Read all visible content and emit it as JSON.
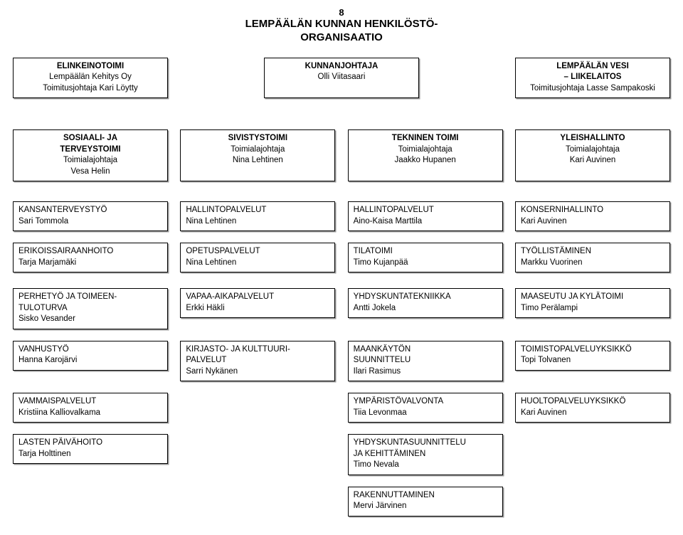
{
  "page_number": "8",
  "title_line1": "LEMPÄÄLÄN KUNNAN HENKILÖSTÖ-",
  "title_line2": "ORGANISAATIO",
  "top": {
    "left": {
      "b1": "ELINKEINOTOIMI",
      "n1": "Lempäälän Kehitys Oy",
      "n2": "Toimitusjohtaja Kari Löytty"
    },
    "center": {
      "b1": "KUNNANJOHTAJA",
      "n1": "Olli Viitasaari"
    },
    "right": {
      "b1": "LEMPÄÄLÄN VESI",
      "b2": "– LIIKELAITOS",
      "n1": "Toimitusjohtaja Lasse Sampakoski"
    }
  },
  "main": {
    "c1": {
      "b1": "SOSIAALI- JA",
      "b2": "TERVEYSTOIMI",
      "n1": "Toimialajohtaja",
      "n2": "Vesa Helin"
    },
    "c2": {
      "b1": "SIVISTYSTOIMI",
      "n1": "Toimialajohtaja",
      "n2": "Nina Lehtinen"
    },
    "c3": {
      "b1": "TEKNINEN TOIMI",
      "n1": "Toimialajohtaja",
      "n2": "Jaakko Hupanen"
    },
    "c4": {
      "b1": "YLEISHALLINTO",
      "n1": "Toimialajohtaja",
      "n2": "Kari Auvinen"
    }
  },
  "rows": {
    "c1": [
      {
        "l1": "KANSANTERVEYSTYÖ",
        "l2": "Sari Tommola"
      },
      {
        "l1": "ERIKOISSAIRAANHOITO",
        "l2": "Tarja Marjamäki"
      },
      {
        "l1": "PERHETYÖ JA TOIMEEN-",
        "l2": "TULOTURVA",
        "l3": "Sisko Vesander"
      },
      {
        "l1": "VANHUSTYÖ",
        "l2": "Hanna Karojärvi"
      },
      {
        "l1": "VAMMAISPALVELUT",
        "l2": "Kristiina Kalliovalkama"
      },
      {
        "l1": "LASTEN PÄIVÄHOITO",
        "l2": "Tarja Holttinen"
      }
    ],
    "c2": [
      {
        "l1": "HALLINTOPALVELUT",
        "l2": "Nina Lehtinen"
      },
      {
        "l1": "OPETUSPALVELUT",
        "l2": "Nina Lehtinen"
      },
      {
        "l1": "VAPAA-AIKAPALVELUT",
        "l2": "Erkki Häkli"
      },
      {
        "l1": "KIRJASTO- JA KULTTUURI-",
        "l2": "PALVELUT",
        "l3": "Sarri Nykänen"
      }
    ],
    "c3": [
      {
        "l1": "HALLINTOPALVELUT",
        "l2": "Aino-Kaisa Marttila"
      },
      {
        "l1": "TILATOIMI",
        "l2": "Timo Kujanpää"
      },
      {
        "l1": "YHDYSKUNTATEKNIIKKA",
        "l2": "Antti Jokela"
      },
      {
        "l1": "MAANKÄYTÖN",
        "l2": "SUUNNITTELU",
        "l3": "Ilari Rasimus"
      },
      {
        "l1": "YMPÄRISTÖVALVONTA",
        "l2": "Tiia Levonmaa"
      },
      {
        "l1": "YHDYSKUNTASUUNNITTELU",
        "l2": "JA KEHITTÄMINEN",
        "l3": "Timo Nevala"
      },
      {
        "l1": "RAKENNUTTAMINEN",
        "l2": "Mervi Järvinen"
      }
    ],
    "c4": [
      {
        "l1": "KONSERNIHALLINTO",
        "l2": "Kari Auvinen"
      },
      {
        "l1": "TYÖLLISTÄMINEN",
        "l2": "Markku Vuorinen"
      },
      {
        "l1": "MAASEUTU JA KYLÄTOIMI",
        "l2": "Timo Perälampi"
      },
      {
        "l1": "TOIMISTOPALVELUYKSIKKÖ",
        "l2": "Topi Tolvanen"
      },
      {
        "l1": "HUOLTOPALVELUYKSIKKÖ",
        "l2": "Kari Auvinen"
      }
    ]
  },
  "row_group_heights": [
    42,
    58,
    60,
    58,
    48,
    60,
    42
  ],
  "colors": {
    "border": "#000000",
    "shadow": "#9a9a9a",
    "bg": "#ffffff"
  }
}
